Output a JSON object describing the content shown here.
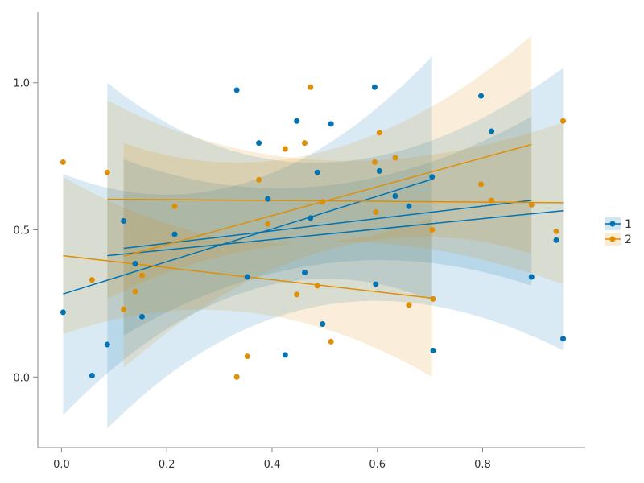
{
  "chart_data": {
    "type": "scatter",
    "title": "",
    "xlabel": "",
    "ylabel": "",
    "xlim": [
      -0.045,
      0.995
    ],
    "ylim": [
      -0.24,
      1.24
    ],
    "x_ticks": [
      0.0,
      0.2,
      0.4,
      0.6,
      0.8
    ],
    "x_tick_labels": [
      "0.0",
      "0.2",
      "0.4",
      "0.6",
      "0.8"
    ],
    "y_ticks": [
      0.0,
      0.5,
      1.0
    ],
    "y_tick_labels": [
      "0.0",
      "0.5",
      "1.0"
    ],
    "grid": false,
    "legend_position": "right",
    "series": [
      {
        "name": "1",
        "color": "#0173b2",
        "points": [
          {
            "x": 0.003,
            "y": 0.22
          },
          {
            "x": 0.058,
            "y": 0.005
          },
          {
            "x": 0.087,
            "y": 0.11
          },
          {
            "x": 0.118,
            "y": 0.53
          },
          {
            "x": 0.14,
            "y": 0.385
          },
          {
            "x": 0.153,
            "y": 0.205
          },
          {
            "x": 0.215,
            "y": 0.485
          },
          {
            "x": 0.333,
            "y": 0.975
          },
          {
            "x": 0.353,
            "y": 0.34
          },
          {
            "x": 0.375,
            "y": 0.795
          },
          {
            "x": 0.392,
            "y": 0.605
          },
          {
            "x": 0.425,
            "y": 0.075
          },
          {
            "x": 0.447,
            "y": 0.87
          },
          {
            "x": 0.462,
            "y": 0.355
          },
          {
            "x": 0.473,
            "y": 0.54
          },
          {
            "x": 0.486,
            "y": 0.695
          },
          {
            "x": 0.496,
            "y": 0.18
          },
          {
            "x": 0.512,
            "y": 0.86
          },
          {
            "x": 0.595,
            "y": 0.985
          },
          {
            "x": 0.597,
            "y": 0.315
          },
          {
            "x": 0.604,
            "y": 0.7
          },
          {
            "x": 0.634,
            "y": 0.615
          },
          {
            "x": 0.66,
            "y": 0.58
          },
          {
            "x": 0.704,
            "y": 0.68
          },
          {
            "x": 0.706,
            "y": 0.09
          },
          {
            "x": 0.797,
            "y": 0.955
          },
          {
            "x": 0.817,
            "y": 0.835
          },
          {
            "x": 0.893,
            "y": 0.34
          },
          {
            "x": 0.94,
            "y": 0.465
          },
          {
            "x": 0.953,
            "y": 0.13
          }
        ],
        "fits": [
          {
            "x": [
              0.003,
              0.704
            ],
            "y": [
              0.282,
              0.672
            ],
            "band_upper": [
              0.69,
              1.09
            ],
            "band_lower": [
              -0.13,
              0.26
            ]
          },
          {
            "x": [
              0.087,
              0.953
            ],
            "y": [
              0.412,
              0.565
            ],
            "band_upper": [
              1.0,
              1.05
            ],
            "band_lower": [
              -0.175,
              0.09
            ]
          },
          {
            "x": [
              0.118,
              0.893
            ],
            "y": [
              0.437,
              0.6
            ],
            "band_upper": [
              0.74,
              0.885
            ],
            "band_lower": [
              0.14,
              0.31
            ]
          }
        ]
      },
      {
        "name": "2",
        "color": "#de8f05",
        "points": [
          {
            "x": 0.003,
            "y": 0.73
          },
          {
            "x": 0.058,
            "y": 0.33
          },
          {
            "x": 0.087,
            "y": 0.695
          },
          {
            "x": 0.118,
            "y": 0.23
          },
          {
            "x": 0.14,
            "y": 0.29
          },
          {
            "x": 0.153,
            "y": 0.345
          },
          {
            "x": 0.215,
            "y": 0.58
          },
          {
            "x": 0.333,
            "y": 0.0
          },
          {
            "x": 0.353,
            "y": 0.07
          },
          {
            "x": 0.375,
            "y": 0.67
          },
          {
            "x": 0.392,
            "y": 0.52
          },
          {
            "x": 0.425,
            "y": 0.775
          },
          {
            "x": 0.447,
            "y": 0.28
          },
          {
            "x": 0.462,
            "y": 0.795
          },
          {
            "x": 0.473,
            "y": 0.985
          },
          {
            "x": 0.486,
            "y": 0.31
          },
          {
            "x": 0.496,
            "y": 0.595
          },
          {
            "x": 0.512,
            "y": 0.12
          },
          {
            "x": 0.595,
            "y": 0.73
          },
          {
            "x": 0.597,
            "y": 0.56
          },
          {
            "x": 0.604,
            "y": 0.83
          },
          {
            "x": 0.634,
            "y": 0.745
          },
          {
            "x": 0.66,
            "y": 0.245
          },
          {
            "x": 0.704,
            "y": 0.5
          },
          {
            "x": 0.706,
            "y": 0.265
          },
          {
            "x": 0.797,
            "y": 0.655
          },
          {
            "x": 0.817,
            "y": 0.6
          },
          {
            "x": 0.893,
            "y": 0.585
          },
          {
            "x": 0.94,
            "y": 0.495
          },
          {
            "x": 0.953,
            "y": 0.87
          }
        ],
        "fits": [
          {
            "x": [
              0.003,
              0.704
            ],
            "y": [
              0.412,
              0.268
            ],
            "band_upper": [
              0.68,
              0.54
            ],
            "band_lower": [
              0.145,
              0.0
            ]
          },
          {
            "x": [
              0.087,
              0.953
            ],
            "y": [
              0.604,
              0.592
            ],
            "band_upper": [
              0.94,
              0.865
            ],
            "band_lower": [
              0.265,
              0.315
            ]
          },
          {
            "x": [
              0.118,
              0.893
            ],
            "y": [
              0.41,
              0.79
            ],
            "band_upper": [
              0.795,
              1.16
            ],
            "band_lower": [
              0.03,
              0.42
            ]
          }
        ]
      }
    ]
  }
}
